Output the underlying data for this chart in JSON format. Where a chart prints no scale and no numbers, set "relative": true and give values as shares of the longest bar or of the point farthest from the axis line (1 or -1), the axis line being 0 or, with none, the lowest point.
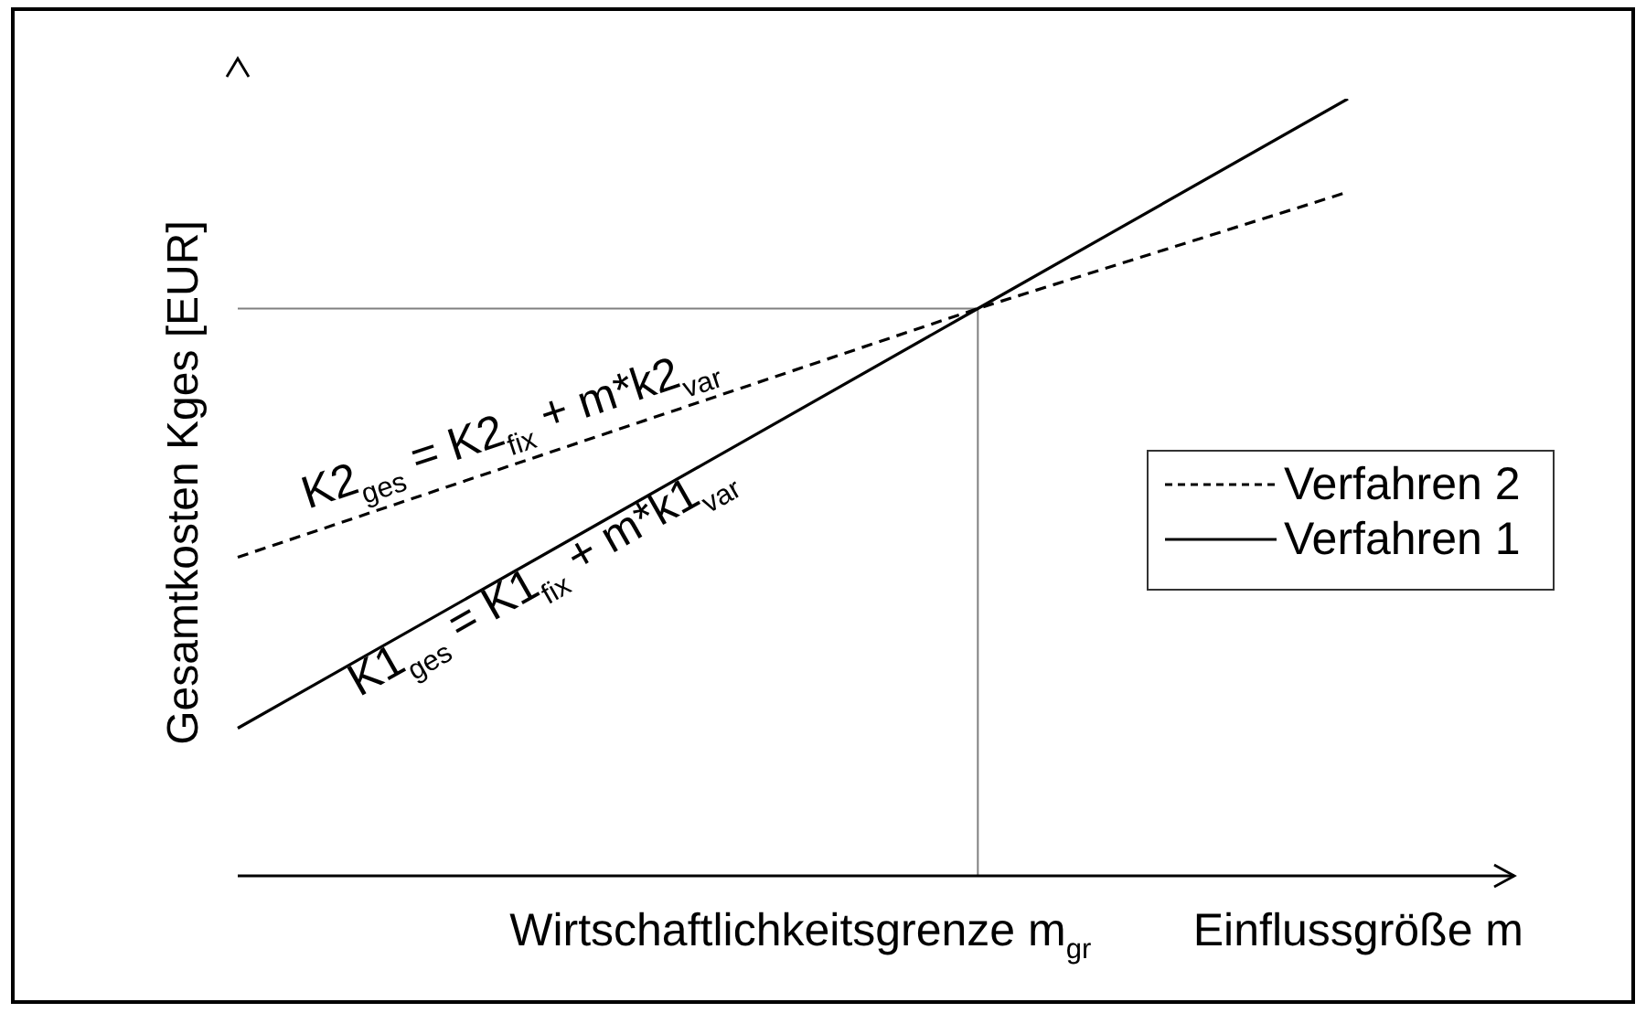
{
  "chart_data": {
    "type": "line",
    "relative": true,
    "xlabel": "Einflussgröße m",
    "ylabel": "Gesamtkosten Kges [EUR]",
    "categories": [
      null,
      null,
      null,
      null
    ],
    "series": [
      {
        "name": "Verfahren 2",
        "color": "#000000",
        "line_style": "dashed",
        "values": [
          0.41,
          0.57,
          0.73,
          0.88
        ]
      },
      {
        "name": "Verfahren 1",
        "color": "#000000",
        "line_style": "solid",
        "values": [
          0.19,
          0.46,
          0.73,
          1
        ]
      }
    ],
    "ref_lines": [
      {
        "axis": "y",
        "value": 0.73,
        "color": "#808080"
      }
    ],
    "annotations": [
      "K2$_{ges}$ = K2$_{fix}$ + m*k2$_{var}$",
      "K1$_{ges}$ = K1$_{fix}$ + m*k1$_{var}$",
      "Wirtschaftlichkeitsgrenze m$_{gr}$"
    ],
    "legend": "right",
    "marker": "none"
  }
}
